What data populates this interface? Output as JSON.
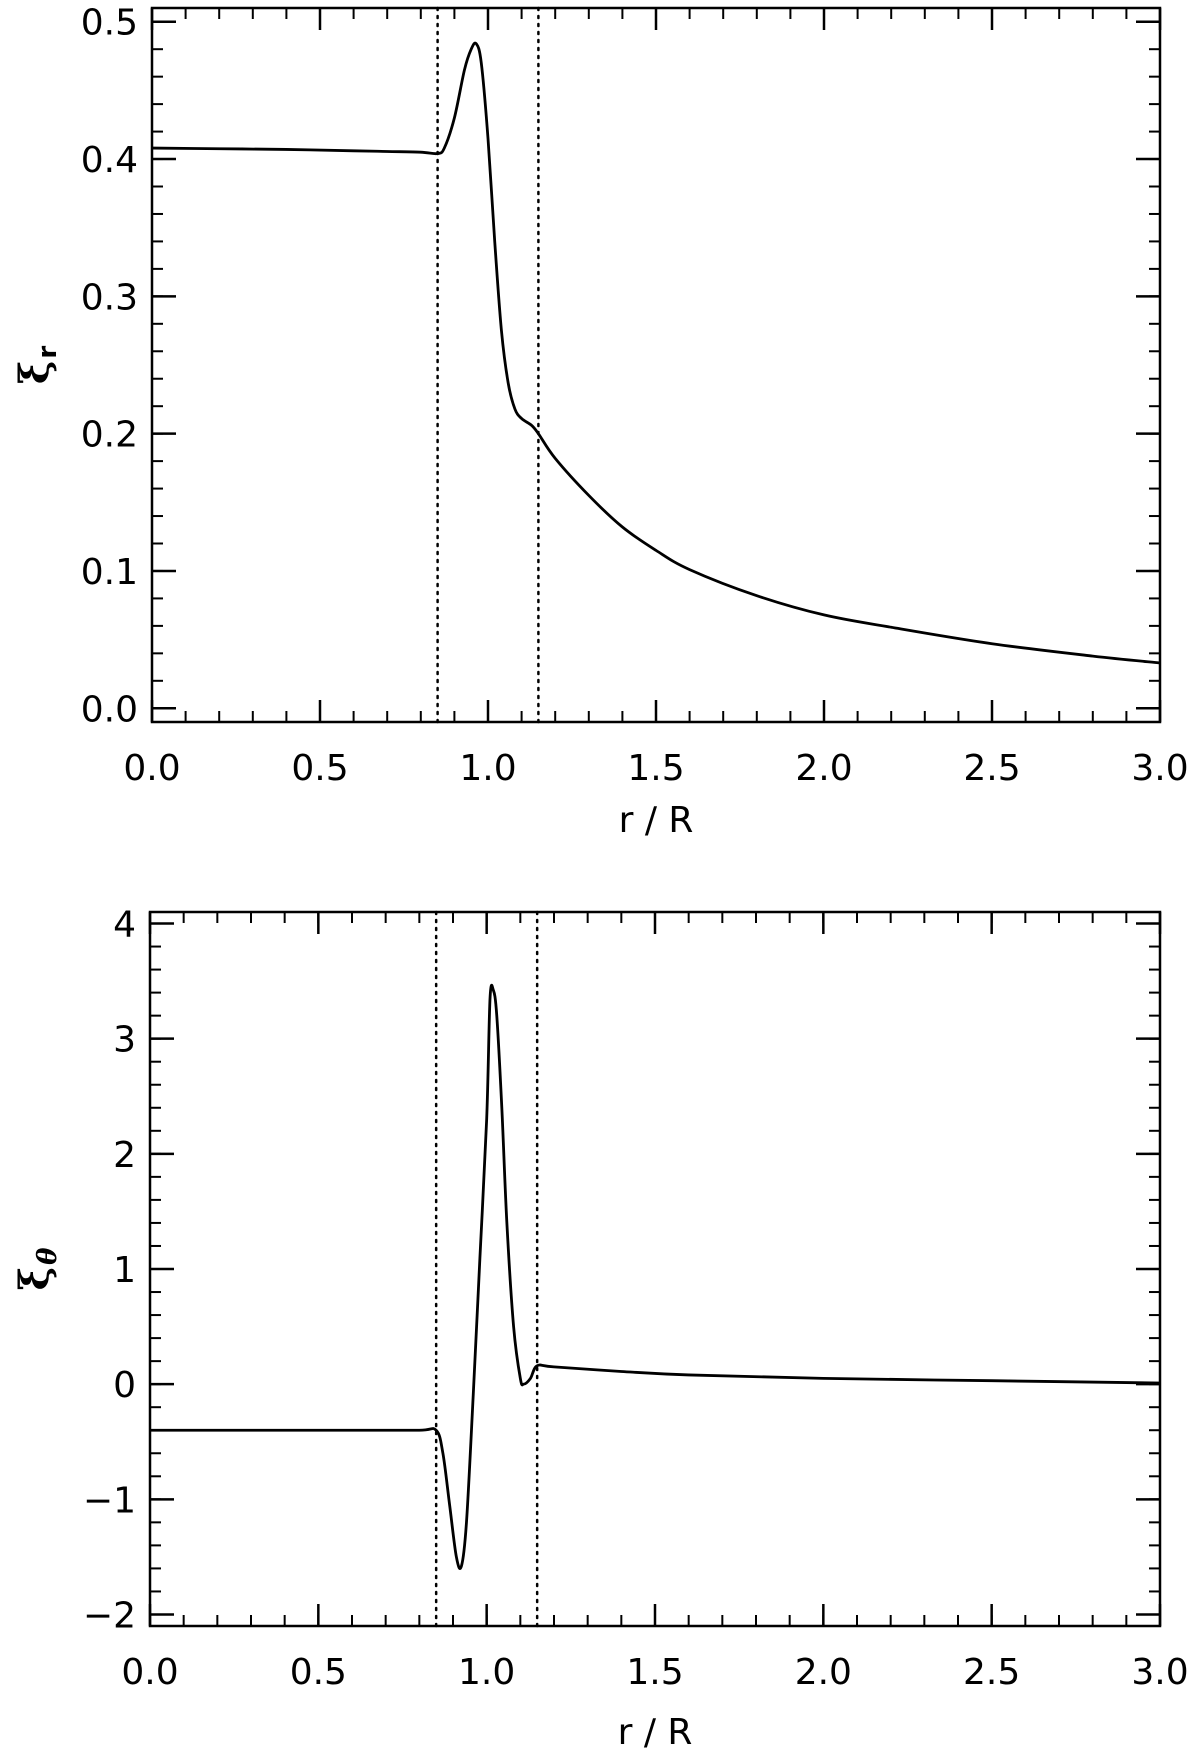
{
  "chart_data": [
    {
      "type": "line",
      "title": "",
      "xlabel": "r / R",
      "ylabel": "ξ",
      "ylabel_sub": "r",
      "xlim": [
        0,
        3
      ],
      "ylim": [
        -0.01,
        0.51
      ],
      "xticks": [
        0,
        0.5,
        1.0,
        1.5,
        2.0,
        2.5,
        3.0
      ],
      "xtick_labels": [
        "0.0",
        "0.5",
        "1.0",
        "1.5",
        "2.0",
        "2.5",
        "3.0"
      ],
      "yticks": [
        0,
        0.1,
        0.2,
        0.3,
        0.4,
        0.5
      ],
      "ytick_labels": [
        "0.0",
        "0.1",
        "0.2",
        "0.3",
        "0.4",
        "0.5"
      ],
      "x_minor_step": 0.1,
      "y_minor_step": 0.02,
      "grid": false,
      "vlines": [
        0.85,
        1.15
      ],
      "series": [
        {
          "x": [
            0,
            0.2,
            0.4,
            0.6,
            0.7,
            0.8,
            0.85,
            0.87,
            0.9,
            0.93,
            0.95,
            0.965,
            0.98,
            1.0,
            1.02,
            1.04,
            1.06,
            1.08,
            1.1,
            1.13,
            1.15,
            1.2,
            1.3,
            1.4,
            1.5,
            1.6,
            1.8,
            2.0,
            2.2,
            2.5,
            2.8,
            3.0
          ],
          "y": [
            0.408,
            0.4075,
            0.407,
            0.406,
            0.4055,
            0.405,
            0.404,
            0.408,
            0.43,
            0.465,
            0.48,
            0.484,
            0.47,
            0.415,
            0.34,
            0.275,
            0.237,
            0.218,
            0.211,
            0.206,
            0.2,
            0.182,
            0.155,
            0.132,
            0.115,
            0.101,
            0.082,
            0.068,
            0.059,
            0.047,
            0.038,
            0.033
          ]
        }
      ]
    },
    {
      "type": "line",
      "title": "",
      "xlabel": "r / R",
      "ylabel": "ξ",
      "ylabel_sub": "θ",
      "xlim": [
        0,
        3
      ],
      "ylim": [
        -2.1,
        4.1
      ],
      "xticks": [
        0,
        0.5,
        1.0,
        1.5,
        2.0,
        2.5,
        3.0
      ],
      "xtick_labels": [
        "0.0",
        "0.5",
        "1.0",
        "1.5",
        "2.0",
        "2.5",
        "3.0"
      ],
      "yticks": [
        -2,
        -1,
        0,
        1,
        2,
        3,
        4
      ],
      "ytick_labels": [
        "−2",
        "−1",
        "0",
        "1",
        "2",
        "3",
        "4"
      ],
      "x_minor_step": 0.1,
      "y_minor_step": 0.2,
      "grid": false,
      "vlines": [
        0.85,
        1.15
      ],
      "series": [
        {
          "x": [
            0,
            0.2,
            0.4,
            0.6,
            0.8,
            0.85,
            0.87,
            0.89,
            0.91,
            0.925,
            0.94,
            0.96,
            0.98,
            1.0,
            1.01,
            1.02,
            1.03,
            1.045,
            1.06,
            1.08,
            1.1,
            1.11,
            1.13,
            1.15,
            1.2,
            1.4,
            1.6,
            2.0,
            2.5,
            3.0
          ],
          "y": [
            -0.4,
            -0.4,
            -0.4,
            -0.4,
            -0.4,
            -0.4,
            -0.6,
            -1.05,
            -1.5,
            -1.58,
            -1.2,
            -0.1,
            1.1,
            2.3,
            3.35,
            3.42,
            3.2,
            2.4,
            1.4,
            0.5,
            0.05,
            0.0,
            0.05,
            0.16,
            0.15,
            0.11,
            0.08,
            0.05,
            0.03,
            0.01
          ]
        }
      ]
    }
  ]
}
